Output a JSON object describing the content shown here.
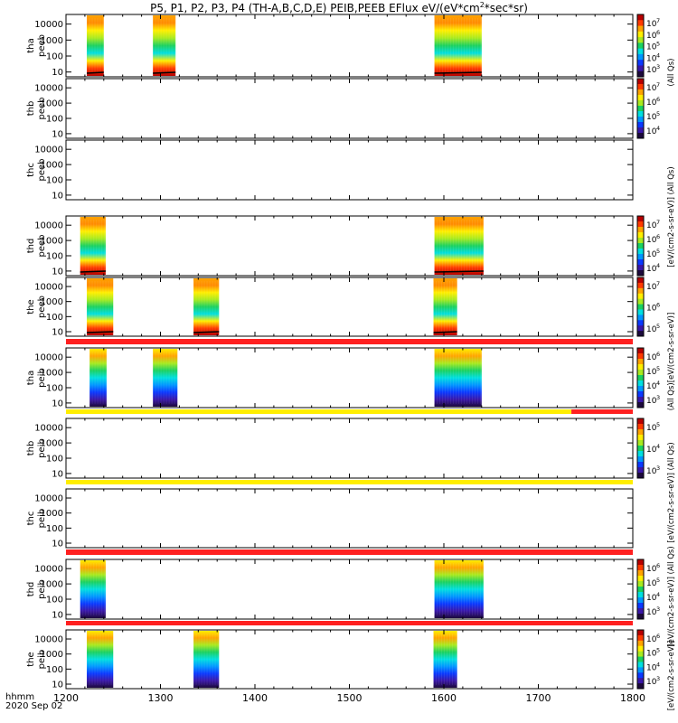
{
  "title_main": "P5, P1, P2, P3, P4 (TH-A,B,C,D,E) PEIB,PEEB EFlux eV/(eV*cm",
  "title_sup": "2",
  "title_tail": "*sec*sr)",
  "x_label": "hhmm",
  "date_label": "2020 Sep 02",
  "colorbar_side_labels": [
    "(All Qs)",
    "[eV/(cm2-s-sr-eV)] (All Qs)",
    "(All Qs)[eV/(cm2-s-sr-eV)]",
    "[eV/(cm2-s-sr-eV)] (All Qs)",
    "[eV/(cm2-s-sr-eV)] (All Qs)",
    "[eV/(cm2-s-sr-eV)]"
  ],
  "chart_data": {
    "type": "heatmap",
    "x_axis": {
      "min": 1200,
      "max": 1800,
      "ticks": [
        1200,
        1300,
        1400,
        1500,
        1600,
        1700,
        1800
      ]
    },
    "y_axis": {
      "scale": "log",
      "ticks": [
        10,
        100,
        1000,
        10000
      ]
    },
    "colormap": [
      "#1c0a3c",
      "#3a17a8",
      "#0b39ff",
      "#0097ff",
      "#00dfe0",
      "#1bd160",
      "#a8ea1f",
      "#ffef00",
      "#ffa300",
      "#ff3a00",
      "#b80000"
    ],
    "panels": [
      {
        "label1": "tha",
        "label2": "peeb",
        "colorbar_ticks": [
          "10",
          "10",
          "10",
          "10",
          "10"
        ],
        "colorbar_exps": [
          "7",
          "6",
          "5",
          "4",
          "3"
        ],
        "blocks": [
          [
            1222,
            1240,
            1
          ],
          [
            1292,
            1316,
            1
          ],
          [
            1590,
            1640,
            0.9
          ]
        ]
      },
      {
        "label1": "thb",
        "label2": "peeb",
        "colorbar_ticks": [
          "10",
          "10",
          "10",
          "10"
        ],
        "colorbar_exps": [
          "7",
          "6",
          "5",
          "4"
        ],
        "blocks": []
      },
      {
        "label1": "thc",
        "label2": "peeb",
        "colorbar_ticks": [],
        "colorbar_exps": [],
        "blocks": []
      },
      {
        "label1": "thd",
        "label2": "peeb",
        "colorbar_ticks": [
          "10",
          "10",
          "10",
          "10"
        ],
        "colorbar_exps": [
          "7",
          "6",
          "5",
          "4"
        ],
        "blocks": [
          [
            1215,
            1242,
            1
          ],
          [
            1590,
            1642,
            0.95
          ]
        ]
      },
      {
        "label1": "the",
        "label2": "peeb",
        "colorbar_ticks": [
          "10",
          "10",
          "10"
        ],
        "colorbar_exps": [
          "7",
          "6",
          "5"
        ],
        "blocks": [
          [
            1222,
            1250,
            0.9
          ],
          [
            1335,
            1362,
            0.9
          ],
          [
            1589,
            1614,
            0.9
          ]
        ]
      },
      {
        "label1": "tha",
        "label2": "peib",
        "colorbar_ticks": [
          "10",
          "10",
          "10",
          "10"
        ],
        "colorbar_exps": [
          "6",
          "5",
          "4",
          "3"
        ],
        "blocks": [
          [
            1225,
            1243,
            0.6
          ],
          [
            1292,
            1318,
            0.6
          ],
          [
            1590,
            1640,
            0.6
          ]
        ]
      },
      {
        "label1": "thb",
        "label2": "peib",
        "colorbar_ticks": [
          "10",
          "10",
          "10"
        ],
        "colorbar_exps": [
          "5",
          "4",
          "3"
        ],
        "blocks": []
      },
      {
        "label1": "thc",
        "label2": "peib",
        "colorbar_ticks": [],
        "colorbar_exps": [],
        "blocks": []
      },
      {
        "label1": "thd",
        "label2": "peib",
        "colorbar_ticks": [
          "10",
          "10",
          "10",
          "10"
        ],
        "colorbar_exps": [
          "6",
          "5",
          "4",
          "3"
        ],
        "blocks": [
          [
            1215,
            1242,
            0.6
          ],
          [
            1590,
            1642,
            0.6
          ]
        ]
      },
      {
        "label1": "the",
        "label2": "peib",
        "colorbar_ticks": [
          "10",
          "10",
          "10",
          "10"
        ],
        "colorbar_exps": [
          "6",
          "5",
          "4",
          "3"
        ],
        "blocks": [
          [
            1222,
            1250,
            0.6
          ],
          [
            1335,
            1362,
            0.6
          ],
          [
            1589,
            1614,
            0.6
          ]
        ]
      }
    ],
    "status_bars": [
      {
        "segments": [
          [
            1200,
            1800,
            "#ff2020"
          ]
        ]
      },
      {
        "segments": [
          [
            1200,
            1735,
            "#ffee00"
          ],
          [
            1735,
            1800,
            "#ff2020"
          ]
        ]
      },
      {
        "segments": [
          [
            1200,
            1800,
            "#ffee00"
          ]
        ]
      },
      {
        "segments": [
          [
            1200,
            1800,
            "#ff2020"
          ]
        ]
      },
      {
        "segments": [
          [
            1200,
            1800,
            "#ff2020"
          ]
        ]
      }
    ]
  }
}
